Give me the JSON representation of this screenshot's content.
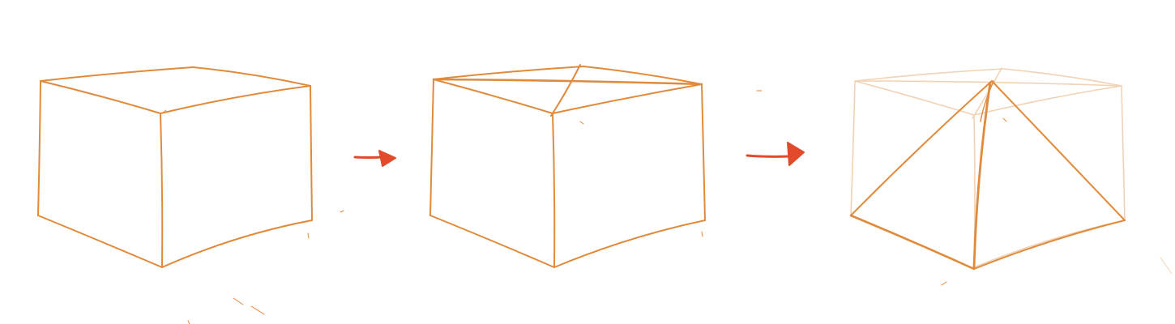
{
  "diagram": {
    "stroke_color": "#e08a3c",
    "faded_color": "#f2d2b4",
    "arrow_color": "#e34a2b",
    "background": "#ffffff",
    "steps": [
      {
        "name": "cube"
      },
      {
        "name": "cube-with-top-diagonals"
      },
      {
        "name": "pyramid-in-faded-cube"
      }
    ]
  }
}
